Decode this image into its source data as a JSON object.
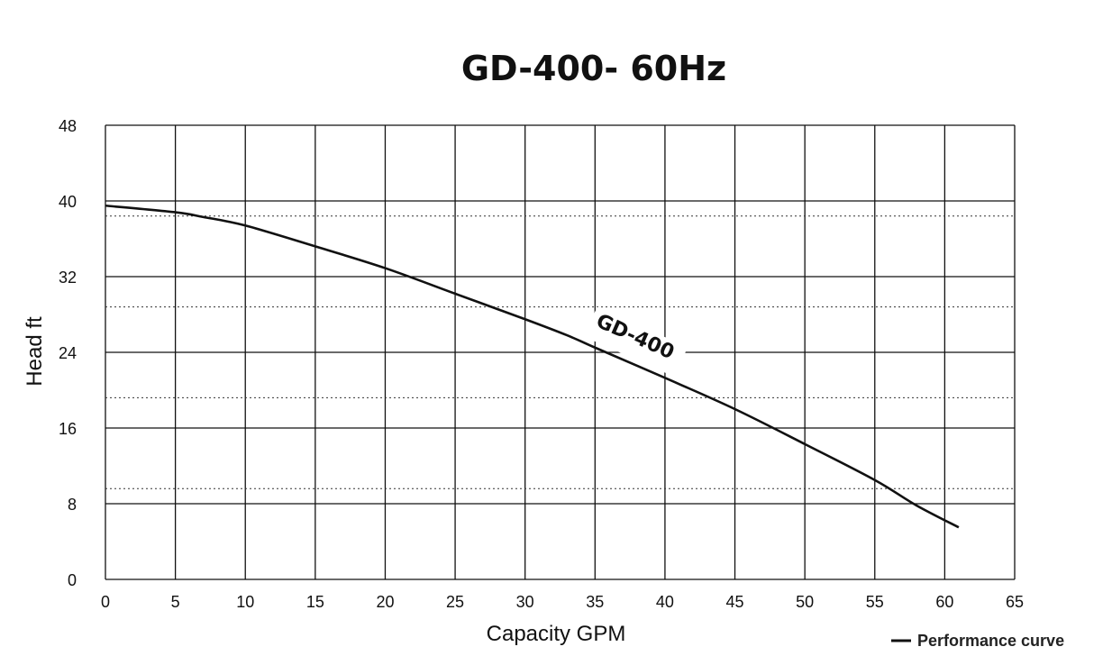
{
  "chart_data": {
    "type": "line",
    "title": "GD-400- 60Hz",
    "xlabel": "Capacity GPM",
    "ylabel": "Head ft",
    "xlim": [
      0,
      65
    ],
    "ylim": [
      0,
      48
    ],
    "x_ticks": [
      0,
      5,
      10,
      15,
      20,
      25,
      30,
      35,
      40,
      45,
      50,
      55,
      60,
      65
    ],
    "y_ticks": [
      0,
      8,
      16,
      24,
      32,
      40,
      48
    ],
    "minor_gridlines_y": [
      9.6,
      19.2,
      28.8,
      38.4
    ],
    "grid": true,
    "legend_position": "bottom-right",
    "legend": [
      {
        "symbol": "—",
        "label": "Performance curve"
      }
    ],
    "series": [
      {
        "name": "GD-400",
        "x": [
          0,
          5,
          7,
          10,
          15,
          20,
          25,
          30,
          33,
          35,
          40,
          45,
          50,
          55,
          58,
          61
        ],
        "y": [
          39.5,
          38.8,
          38.3,
          37.4,
          35.2,
          32.9,
          30.2,
          27.5,
          25.8,
          24.5,
          21.3,
          18.0,
          14.3,
          10.5,
          7.8,
          5.5
        ]
      }
    ]
  }
}
